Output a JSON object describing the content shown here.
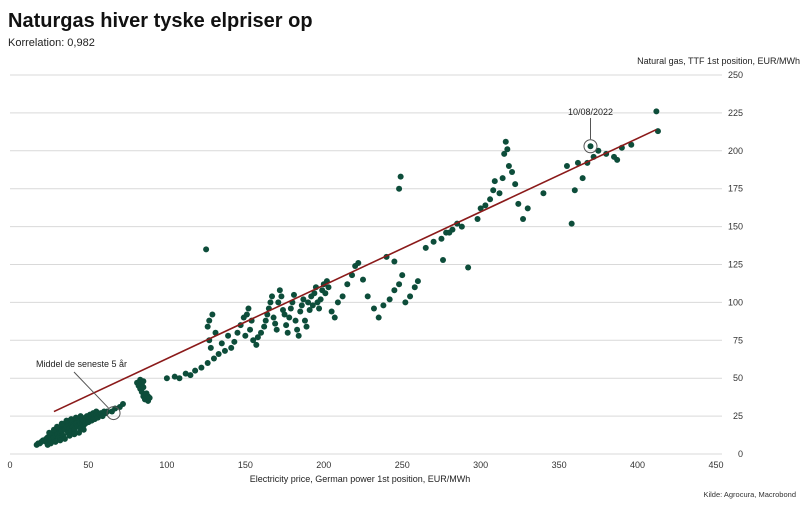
{
  "chart_data": {
    "type": "scatter",
    "title": "Naturgas hiver tyske elpriser op",
    "subtitle": "Korrelation: 0,982",
    "xlabel": "Electricity price, German power 1st position, EUR/MWh",
    "ylabel": "Natural gas, TTF 1st position, EUR/MWh",
    "source": "Kilde: Agrocura, Macrobond",
    "xlim": [
      0,
      450
    ],
    "ylim": [
      0,
      250
    ],
    "x_ticks": [
      "0",
      "50",
      "100",
      "150",
      "200",
      "250",
      "300",
      "350",
      "400",
      "450"
    ],
    "y_ticks": [
      "0",
      "25",
      "50",
      "75",
      "100",
      "125",
      "150",
      "175",
      "200",
      "225",
      "250"
    ],
    "grid": "horizontal",
    "y_axis_position": "right",
    "colors": {
      "points": "#0d4d3a",
      "trendline": "#8b1a1a",
      "grid": "#d9d9d9"
    },
    "trendline": {
      "x": [
        28,
        412
      ],
      "y": [
        28,
        214
      ]
    },
    "points": [
      [
        17,
        6
      ],
      [
        18,
        7
      ],
      [
        19,
        7
      ],
      [
        20,
        8
      ],
      [
        21,
        9
      ],
      [
        22,
        9
      ],
      [
        23,
        10
      ],
      [
        23,
        8
      ],
      [
        24,
        11
      ],
      [
        25,
        10
      ],
      [
        26,
        12
      ],
      [
        26,
        9
      ],
      [
        27,
        13
      ],
      [
        28,
        11
      ],
      [
        28,
        14
      ],
      [
        29,
        12
      ],
      [
        30,
        15
      ],
      [
        30,
        13
      ],
      [
        31,
        16
      ],
      [
        31,
        11
      ],
      [
        32,
        17
      ],
      [
        32,
        14
      ],
      [
        33,
        18
      ],
      [
        33,
        15
      ],
      [
        34,
        19
      ],
      [
        34,
        12
      ],
      [
        35,
        20
      ],
      [
        35,
        16
      ],
      [
        36,
        18
      ],
      [
        36,
        21
      ],
      [
        37,
        14
      ],
      [
        37,
        19
      ],
      [
        38,
        22
      ],
      [
        38,
        17
      ],
      [
        39,
        20
      ],
      [
        39,
        15
      ],
      [
        40,
        21
      ],
      [
        40,
        18
      ],
      [
        41,
        22
      ],
      [
        41,
        16
      ],
      [
        42,
        20
      ],
      [
        42,
        23
      ],
      [
        43,
        18
      ],
      [
        43,
        21
      ],
      [
        44,
        19
      ],
      [
        44,
        22
      ],
      [
        45,
        20
      ],
      [
        45,
        17
      ],
      [
        46,
        21
      ],
      [
        46,
        23
      ],
      [
        47,
        19
      ],
      [
        47,
        22
      ],
      [
        48,
        20
      ],
      [
        48,
        24
      ],
      [
        49,
        22
      ],
      [
        49,
        25
      ],
      [
        50,
        23
      ],
      [
        50,
        21
      ],
      [
        51,
        24
      ],
      [
        51,
        26
      ],
      [
        52,
        22
      ],
      [
        52,
        25
      ],
      [
        53,
        24
      ],
      [
        53,
        27
      ],
      [
        54,
        25
      ],
      [
        54,
        23
      ],
      [
        55,
        26
      ],
      [
        55,
        28
      ],
      [
        56,
        24
      ],
      [
        56,
        27
      ],
      [
        57,
        26
      ],
      [
        58,
        27
      ],
      [
        59,
        25
      ],
      [
        60,
        28
      ],
      [
        61,
        27
      ],
      [
        62,
        28
      ],
      [
        24,
        6
      ],
      [
        26,
        7
      ],
      [
        29,
        8
      ],
      [
        32,
        9
      ],
      [
        35,
        10
      ],
      [
        38,
        12
      ],
      [
        41,
        13
      ],
      [
        44,
        14
      ],
      [
        47,
        16
      ],
      [
        25,
        14
      ],
      [
        28,
        16
      ],
      [
        30,
        18
      ],
      [
        33,
        20
      ],
      [
        36,
        22
      ],
      [
        39,
        23
      ],
      [
        42,
        24
      ],
      [
        45,
        25
      ],
      [
        65,
        28
      ],
      [
        67,
        30
      ],
      [
        70,
        31
      ],
      [
        72,
        33
      ],
      [
        81,
        47
      ],
      [
        82,
        45
      ],
      [
        83,
        49
      ],
      [
        83,
        43
      ],
      [
        84,
        46
      ],
      [
        84,
        41
      ],
      [
        85,
        44
      ],
      [
        85,
        48
      ],
      [
        85,
        38
      ],
      [
        86,
        39
      ],
      [
        86,
        36
      ],
      [
        87,
        37
      ],
      [
        87,
        40
      ],
      [
        88,
        35
      ],
      [
        88,
        38
      ],
      [
        89,
        37
      ],
      [
        100,
        50
      ],
      [
        105,
        51
      ],
      [
        108,
        50
      ],
      [
        112,
        53
      ],
      [
        115,
        52
      ],
      [
        118,
        55
      ],
      [
        122,
        57
      ],
      [
        126,
        60
      ],
      [
        130,
        63
      ],
      [
        128,
        70
      ],
      [
        127,
        75
      ],
      [
        126,
        84
      ],
      [
        127,
        88
      ],
      [
        129,
        92
      ],
      [
        131,
        80
      ],
      [
        133,
        66
      ],
      [
        135,
        73
      ],
      [
        137,
        68
      ],
      [
        139,
        78
      ],
      [
        141,
        70
      ],
      [
        143,
        74
      ],
      [
        145,
        80
      ],
      [
        147,
        85
      ],
      [
        149,
        90
      ],
      [
        150,
        78
      ],
      [
        151,
        92
      ],
      [
        152,
        96
      ],
      [
        153,
        82
      ],
      [
        154,
        88
      ],
      [
        155,
        75
      ],
      [
        157,
        72
      ],
      [
        158,
        77
      ],
      [
        160,
        80
      ],
      [
        162,
        84
      ],
      [
        163,
        88
      ],
      [
        164,
        92
      ],
      [
        165,
        96
      ],
      [
        166,
        100
      ],
      [
        167,
        104
      ],
      [
        168,
        90
      ],
      [
        169,
        86
      ],
      [
        170,
        82
      ],
      [
        171,
        100
      ],
      [
        172,
        108
      ],
      [
        173,
        104
      ],
      [
        174,
        95
      ],
      [
        175,
        92
      ],
      [
        176,
        85
      ],
      [
        177,
        80
      ],
      [
        178,
        90
      ],
      [
        179,
        96
      ],
      [
        180,
        100
      ],
      [
        181,
        105
      ],
      [
        182,
        88
      ],
      [
        183,
        82
      ],
      [
        184,
        78
      ],
      [
        185,
        94
      ],
      [
        186,
        98
      ],
      [
        187,
        102
      ],
      [
        188,
        88
      ],
      [
        189,
        84
      ],
      [
        190,
        100
      ],
      [
        191,
        95
      ],
      [
        192,
        104
      ],
      [
        193,
        98
      ],
      [
        194,
        106
      ],
      [
        195,
        110
      ],
      [
        196,
        100
      ],
      [
        197,
        96
      ],
      [
        198,
        102
      ],
      [
        199,
        108
      ],
      [
        200,
        112
      ],
      [
        201,
        106
      ],
      [
        202,
        114
      ],
      [
        203,
        110
      ],
      [
        205,
        94
      ],
      [
        207,
        90
      ],
      [
        209,
        100
      ],
      [
        212,
        104
      ],
      [
        215,
        112
      ],
      [
        218,
        118
      ],
      [
        220,
        124
      ],
      [
        222,
        126
      ],
      [
        225,
        115
      ],
      [
        228,
        104
      ],
      [
        232,
        96
      ],
      [
        235,
        90
      ],
      [
        238,
        98
      ],
      [
        242,
        102
      ],
      [
        245,
        108
      ],
      [
        248,
        112
      ],
      [
        250,
        118
      ],
      [
        252,
        100
      ],
      [
        255,
        104
      ],
      [
        258,
        110
      ],
      [
        260,
        114
      ],
      [
        248,
        175
      ],
      [
        249,
        183
      ],
      [
        240,
        130
      ],
      [
        245,
        127
      ],
      [
        125,
        135
      ],
      [
        265,
        136
      ],
      [
        270,
        140
      ],
      [
        275,
        142
      ],
      [
        278,
        146
      ],
      [
        282,
        148
      ],
      [
        285,
        152
      ],
      [
        288,
        150
      ],
      [
        292,
        123
      ],
      [
        276,
        128
      ],
      [
        280,
        146
      ],
      [
        298,
        155
      ],
      [
        300,
        162
      ],
      [
        303,
        164
      ],
      [
        306,
        168
      ],
      [
        308,
        174
      ],
      [
        309,
        180
      ],
      [
        312,
        172
      ],
      [
        314,
        182
      ],
      [
        316,
        206
      ],
      [
        317,
        201
      ],
      [
        315,
        198
      ],
      [
        318,
        190
      ],
      [
        320,
        186
      ],
      [
        322,
        178
      ],
      [
        324,
        165
      ],
      [
        327,
        155
      ],
      [
        330,
        162
      ],
      [
        340,
        172
      ],
      [
        355,
        190
      ],
      [
        358,
        152
      ],
      [
        360,
        174
      ],
      [
        362,
        192
      ],
      [
        365,
        182
      ],
      [
        368,
        192
      ],
      [
        370,
        203
      ],
      [
        372,
        196
      ],
      [
        375,
        200
      ],
      [
        380,
        198
      ],
      [
        385,
        196
      ],
      [
        387,
        194
      ],
      [
        390,
        202
      ],
      [
        396,
        204
      ],
      [
        412,
        226
      ],
      [
        413,
        213
      ]
    ],
    "highlighted_points": [
      {
        "label": "10/08/2022",
        "x": 370,
        "y": 203
      },
      {
        "label": "Middel de seneste 5 år",
        "x": 66,
        "y": 27
      }
    ]
  }
}
